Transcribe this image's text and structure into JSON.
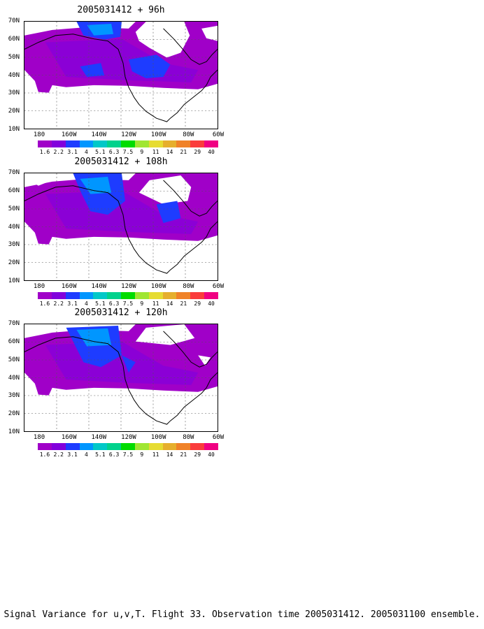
{
  "panels": [
    {
      "title": "2005031412 + 96h",
      "variant": 0
    },
    {
      "title": "2005031412 + 108h",
      "variant": 1
    },
    {
      "title": "2005031412 + 120h",
      "variant": 2
    }
  ],
  "y_ticks": [
    "70N",
    "60N",
    "50N",
    "40N",
    "30N",
    "20N",
    "10N"
  ],
  "x_ticks": [
    "180",
    "160W",
    "140W",
    "120W",
    "100W",
    "80W",
    "60W"
  ],
  "colorbar": {
    "labels": [
      "1.6",
      "2.2",
      "3.1",
      "4",
      "5.1",
      "6.3",
      "7.5",
      "9",
      "11",
      "14",
      "21",
      "29",
      "40"
    ],
    "colors": [
      "#a000c8",
      "#8200dc",
      "#1e3cff",
      "#0096ff",
      "#00c8c8",
      "#00d28c",
      "#00dc00",
      "#a0e632",
      "#e6dc32",
      "#e6af2d",
      "#f08228",
      "#fa3c3c",
      "#f00082"
    ]
  },
  "caption": "Signal Variance for u,v,T. Flight 33. Observation time 2005031412. 2005031100 ensemble."
}
